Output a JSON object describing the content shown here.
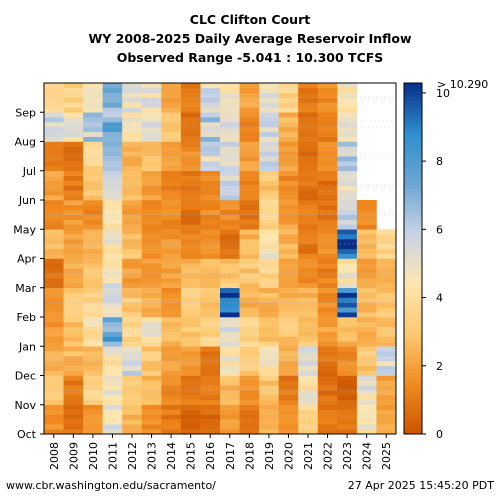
{
  "header": {
    "title_lines": [
      "CLC Clifton Court",
      "WY 2008-2025 Daily Average Reservoir Inflow",
      "Observed Range -5.041 : 10.300 TCFS"
    ]
  },
  "footer": {
    "url": "www.cbr.washington.edu/sacramento/",
    "timestamp": "27 Apr 2025 15:45:20 PDT"
  },
  "chart_data": {
    "type": "heatmap",
    "title": "CLC Clifton Court",
    "subtitle": "WY 2008-2025 Daily Average Reservoir Inflow",
    "range_note": "Observed Range -5.041 : 10.300 TCFS",
    "x_tick_labels": [
      "2008",
      "2009",
      "2010",
      "2011",
      "2012",
      "2013",
      "2014",
      "2015",
      "2016",
      "2017",
      "2018",
      "2019",
      "2020",
      "2021",
      "2022",
      "2023",
      "2024",
      "2025"
    ],
    "y_tick_labels": [
      "Oct",
      "Nov",
      "Dec",
      "Jan",
      "Feb",
      "Mar",
      "Apr",
      "May",
      "Jun",
      "Jul",
      "Aug",
      "Sep"
    ],
    "colorbar": {
      "ticks": [
        0,
        2,
        4,
        6,
        8,
        10
      ],
      "range": [
        0,
        10.29
      ],
      "max_label": "> 10.290",
      "colors": [
        "#cc5500",
        "#f08a20",
        "#fdc870",
        "#fde6b0",
        "#c9d3e6",
        "#6ba6d2",
        "#2e8fcf",
        "#08308a"
      ]
    },
    "grid": true,
    "values_by_year_month": [
      [
        1.6,
        3.0,
        2.4,
        1.8,
        1.5,
        0.8,
        2.5,
        1.5,
        2.0,
        1.2,
        5.5,
        3.5
      ],
      [
        0.7,
        1.0,
        2.5,
        2.8,
        3.0,
        2.5,
        2.0,
        1.8,
        1.0,
        0.8,
        5.0,
        3.5
      ],
      [
        1.5,
        3.5,
        2.5,
        4.0,
        3.5,
        2.8,
        2.5,
        1.5,
        3.0,
        3.5,
        6.0,
        5.5
      ],
      [
        5.0,
        4.5,
        4.5,
        7.5,
        5.5,
        5.0,
        4.5,
        4.0,
        5.5,
        6.0,
        7.0,
        6.5
      ],
      [
        2.5,
        3.0,
        5.5,
        3.5,
        3.0,
        2.0,
        2.8,
        2.0,
        2.5,
        2.5,
        4.5,
        5.0
      ],
      [
        1.5,
        2.5,
        3.0,
        4.5,
        2.5,
        2.0,
        1.5,
        1.2,
        2.0,
        3.0,
        5.5,
        5.0
      ],
      [
        1.0,
        1.5,
        2.0,
        2.5,
        1.5,
        2.0,
        1.8,
        1.5,
        1.2,
        2.0,
        3.0,
        2.0
      ],
      [
        0.5,
        1.0,
        2.0,
        3.0,
        3.5,
        2.5,
        1.2,
        0.8,
        1.0,
        1.5,
        0.8,
        1.0
      ],
      [
        0.6,
        1.0,
        1.0,
        3.5,
        3.0,
        2.5,
        1.5,
        1.5,
        1.5,
        5.5,
        6.0,
        5.5
      ],
      [
        2.0,
        2.5,
        4.5,
        5.0,
        10.0,
        3.0,
        0.8,
        1.5,
        5.5,
        6.0,
        5.5,
        4.5
      ],
      [
        0.8,
        1.5,
        3.0,
        3.5,
        2.5,
        3.0,
        2.5,
        1.0,
        1.5,
        2.0,
        1.5,
        2.0
      ],
      [
        2.5,
        3.0,
        4.5,
        3.0,
        2.5,
        3.5,
        4.5,
        3.5,
        3.0,
        5.5,
        6.0,
        5.5
      ],
      [
        1.5,
        1.0,
        2.5,
        3.0,
        2.5,
        2.0,
        2.5,
        2.0,
        1.5,
        2.0,
        2.5,
        3.5
      ],
      [
        3.5,
        4.5,
        5.5,
        3.0,
        2.5,
        1.5,
        1.0,
        1.2,
        0.8,
        0.6,
        0.8,
        1.0
      ],
      [
        1.0,
        0.8,
        0.8,
        2.0,
        1.5,
        1.2,
        1.5,
        1.0,
        0.8,
        1.5,
        1.0,
        1.5
      ],
      [
        1.0,
        0.5,
        1.5,
        2.5,
        9.0,
        4.5,
        9.5,
        5.5,
        5.5,
        6.0,
        5.0,
        4.5
      ],
      [
        4.5,
        5.0,
        3.0,
        2.5,
        2.5,
        2.0,
        2.5,
        1.5,
        null,
        null,
        null,
        null
      ],
      [
        2.0,
        2.0,
        5.5,
        3.0,
        3.0,
        2.5,
        3.5,
        null,
        null,
        null,
        null,
        null
      ]
    ]
  }
}
